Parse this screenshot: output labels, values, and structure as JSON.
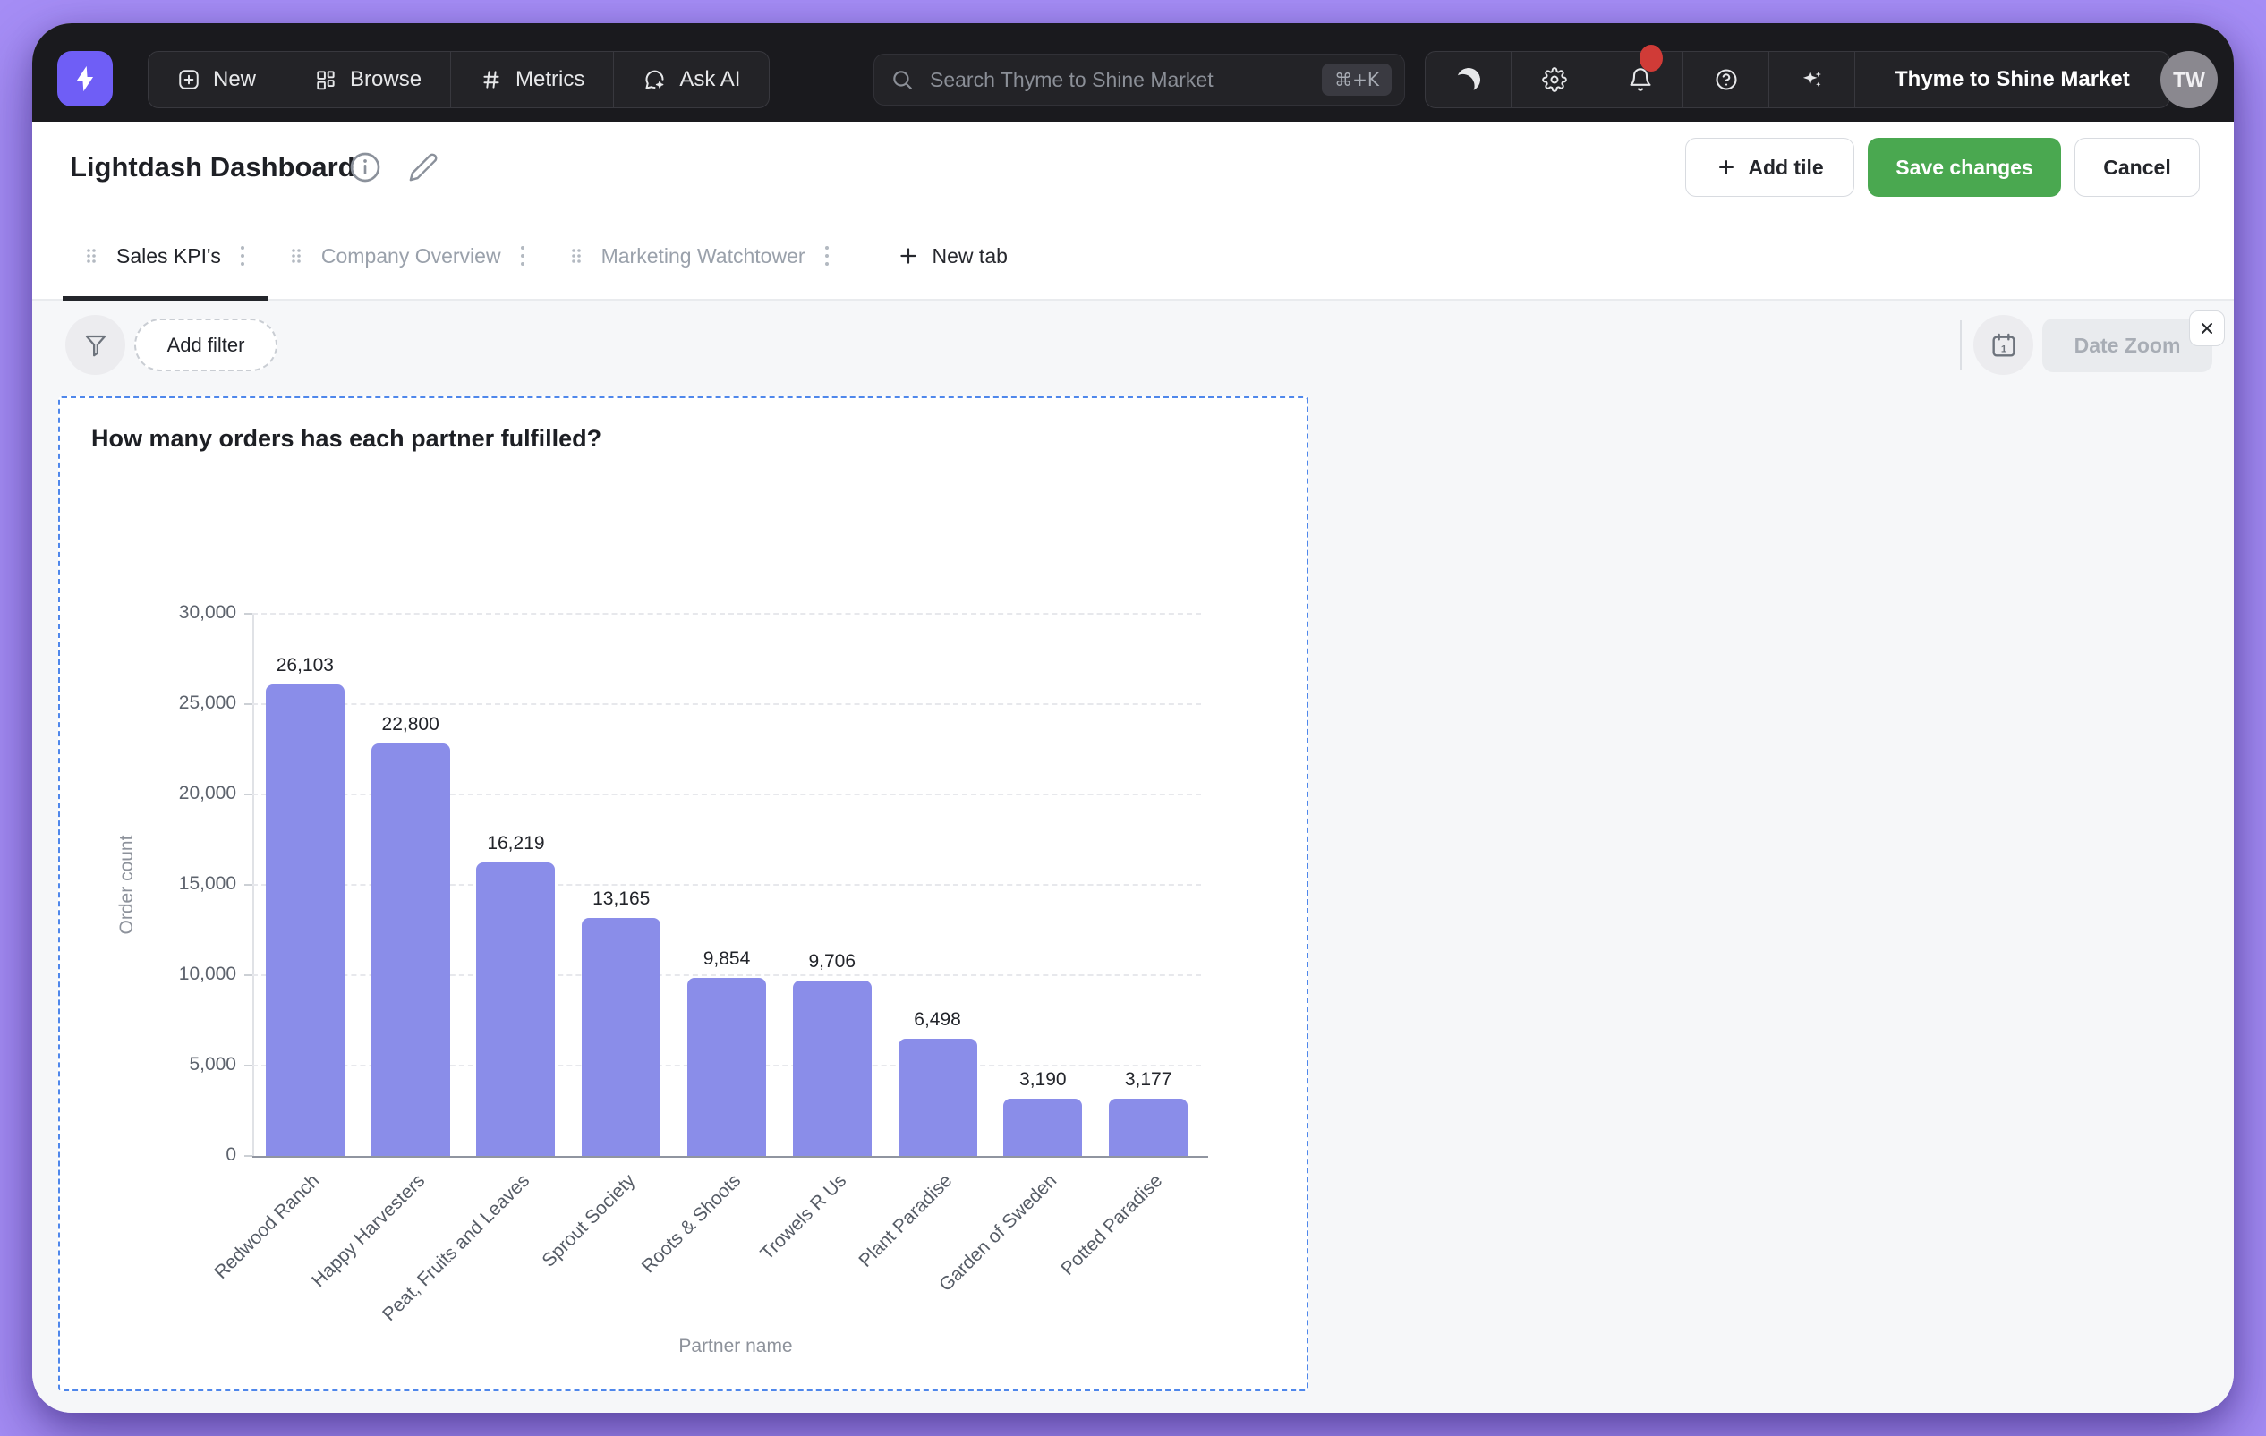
{
  "topbar": {
    "nav": [
      {
        "icon": "plus-square-icon",
        "label": "New"
      },
      {
        "icon": "grid-icon",
        "label": "Browse"
      },
      {
        "icon": "hash-icon",
        "label": "Metrics"
      },
      {
        "icon": "chat-sparkle-icon",
        "label": "Ask AI"
      }
    ],
    "search": {
      "placeholder": "Search Thyme to Shine Market",
      "shortcut": "⌘+K"
    },
    "right_icons": [
      "moon-icon",
      "gear-icon",
      "bell-icon",
      "help-icon",
      "sparkles-icon"
    ],
    "org_name": "Thyme to Shine Market",
    "avatar_initials": "TW"
  },
  "header": {
    "title": "Lightdash Dashboard",
    "add_tile_label": "Add tile",
    "save_label": "Save changes",
    "cancel_label": "Cancel"
  },
  "tabs": [
    {
      "label": "Sales KPI's",
      "active": true
    },
    {
      "label": "Company Overview",
      "active": false
    },
    {
      "label": "Marketing Watchtower",
      "active": false
    }
  ],
  "new_tab_label": "New tab",
  "toolbar": {
    "add_filter_label": "Add filter",
    "date_zoom_label": "Date Zoom"
  },
  "tile": {
    "title": "How many orders has each partner fulfilled?"
  },
  "chart_data": {
    "type": "bar",
    "title": "How many orders has each partner fulfilled?",
    "categories": [
      "Redwood Ranch",
      "Happy Harvesters",
      "Peat, Fruits and Leaves",
      "Sprout Society",
      "Roots & Shoots",
      "Trowels R Us",
      "Plant Paradise",
      "Garden of Sweden",
      "Potted Paradise"
    ],
    "values": [
      26103,
      22800,
      16219,
      13165,
      9854,
      9706,
      6498,
      3190,
      3177
    ],
    "value_labels": [
      "26,103",
      "22,800",
      "16,219",
      "13,165",
      "9,854",
      "9,706",
      "6,498",
      "3,190",
      "3,177"
    ],
    "xlabel": "Partner name",
    "ylabel": "Order count",
    "ylim": [
      0,
      30000
    ],
    "ytick_step": 5000,
    "ytick_labels": [
      "0",
      "5,000",
      "10,000",
      "15,000",
      "20,000",
      "25,000",
      "30,000"
    ],
    "grid": true,
    "legend": false,
    "bar_color": "#8a8de9",
    "label_rotation_deg": 45
  },
  "colors": {
    "desktop_purple": "#a68ef6",
    "topbar_bg": "#1a1a1e",
    "accent_purple": "#6f5ef6",
    "save_green": "#4aa850",
    "notification_red": "#d03b37",
    "tile_selection_blue": "#4f87eb",
    "bar_purple": "#8a8de9"
  }
}
